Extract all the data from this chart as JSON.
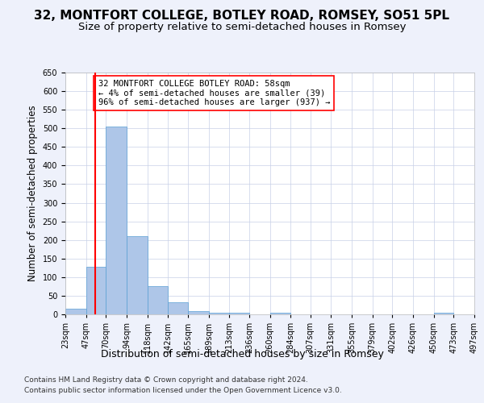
{
  "title1": "32, MONTFORT COLLEGE, BOTLEY ROAD, ROMSEY, SO51 5PL",
  "title2": "Size of property relative to semi-detached houses in Romsey",
  "xlabel": "Distribution of semi-detached houses by size in Romsey",
  "ylabel": "Number of semi-detached properties",
  "footer1": "Contains HM Land Registry data © Crown copyright and database right 2024.",
  "footer2": "Contains public sector information licensed under the Open Government Licence v3.0.",
  "annotation_line1": "32 MONTFORT COLLEGE BOTLEY ROAD: 58sqm",
  "annotation_line2": "← 4% of semi-detached houses are smaller (39)",
  "annotation_line3": "96% of semi-detached houses are larger (937) →",
  "bar_edges": [
    23,
    47,
    70,
    94,
    118,
    142,
    165,
    189,
    213,
    236,
    260,
    284,
    307,
    331,
    355,
    379,
    402,
    426,
    450,
    473,
    497
  ],
  "bar_heights": [
    15,
    127,
    505,
    210,
    75,
    32,
    8,
    5,
    5,
    0,
    5,
    0,
    0,
    0,
    0,
    0,
    0,
    0,
    5,
    0
  ],
  "bar_color": "#aec6e8",
  "bar_edge_color": "#5a9fd4",
  "red_line_x": 58,
  "ylim": [
    0,
    650
  ],
  "yticks": [
    0,
    50,
    100,
    150,
    200,
    250,
    300,
    350,
    400,
    450,
    500,
    550,
    600,
    650
  ],
  "bg_color": "#eef1fb",
  "plot_bg_color": "#ffffff",
  "grid_color": "#c8d0e8",
  "title1_fontsize": 11,
  "title2_fontsize": 9.5,
  "annotation_fontsize": 7.5,
  "tick_fontsize": 7,
  "xlabel_fontsize": 9,
  "ylabel_fontsize": 8.5,
  "footer_fontsize": 6.5
}
